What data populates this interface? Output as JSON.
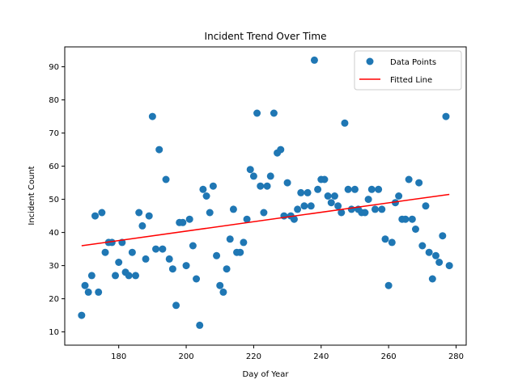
{
  "chart_data": {
    "type": "scatter",
    "title": "Incident Trend Over Time",
    "xlabel": "Day of Year",
    "ylabel": "Incident Count",
    "xlim": [
      164,
      283
    ],
    "ylim": [
      6.0,
      96.0
    ],
    "xticks": [
      180,
      200,
      220,
      240,
      260,
      280
    ],
    "yticks": [
      10,
      20,
      30,
      40,
      50,
      60,
      70,
      80,
      90
    ],
    "grid": false,
    "legend_position": "upper right",
    "series": [
      {
        "name": "Data Points",
        "kind": "scatter",
        "color": "#1f77b4",
        "x": [
          169,
          170,
          171,
          172,
          173,
          174,
          175,
          176,
          177,
          178,
          179,
          180,
          181,
          182,
          183,
          184,
          185,
          186,
          187,
          188,
          189,
          190,
          191,
          192,
          193,
          194,
          195,
          196,
          197,
          198,
          199,
          200,
          201,
          202,
          203,
          204,
          205,
          206,
          207,
          208,
          209,
          210,
          211,
          212,
          213,
          214,
          215,
          216,
          217,
          218,
          219,
          220,
          221,
          222,
          223,
          224,
          225,
          226,
          227,
          228,
          229,
          230,
          231,
          232,
          233,
          234,
          235,
          236,
          237,
          238,
          239,
          240,
          241,
          242,
          243,
          244,
          245,
          246,
          247,
          248,
          249,
          250,
          251,
          252,
          253,
          254,
          255,
          256,
          257,
          258,
          259,
          260,
          261,
          262,
          263,
          264,
          265,
          266,
          267,
          268,
          269,
          270,
          271,
          272,
          273,
          274,
          275,
          276,
          277,
          278
        ],
        "y": [
          15,
          24,
          22,
          27,
          45,
          22,
          46,
          34,
          37,
          37,
          27,
          31,
          37,
          28,
          27,
          34,
          27,
          46,
          42,
          32,
          45,
          75,
          35,
          65,
          35,
          56,
          32,
          29,
          18,
          43,
          43,
          30,
          44,
          36,
          26,
          12,
          53,
          51,
          46,
          54,
          33,
          24,
          22,
          29,
          38,
          47,
          34,
          34,
          37,
          44,
          59,
          57,
          76,
          54,
          46,
          54,
          57,
          76,
          64,
          65,
          45,
          55,
          45,
          44,
          47,
          52,
          48,
          52,
          48,
          92,
          53,
          56,
          56,
          51,
          49,
          51,
          48,
          46,
          73,
          53,
          47,
          53,
          47,
          46,
          46,
          50,
          53,
          47,
          53,
          47,
          38,
          24,
          37,
          49,
          51,
          44,
          44,
          56,
          44,
          41,
          55,
          36,
          48,
          34,
          26,
          33,
          31,
          39,
          75,
          30
        ]
      },
      {
        "name": "Fitted Line",
        "kind": "line",
        "color": "#ff0000",
        "x": [
          169,
          278
        ],
        "y": [
          36.0,
          51.5
        ]
      }
    ]
  }
}
